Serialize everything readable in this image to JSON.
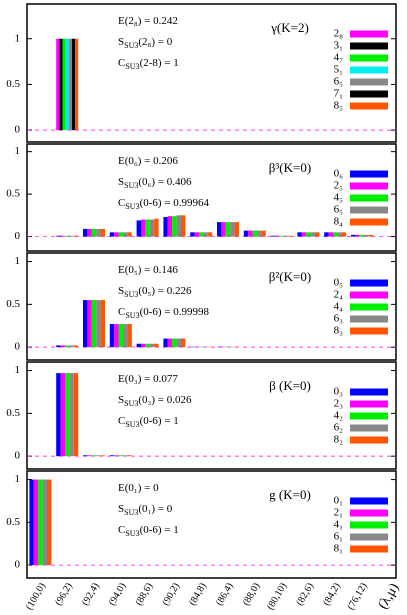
{
  "chart_data": [
    {
      "type": "bar",
      "label": "γ(K=2)",
      "annotations": [
        [
          "E(2₈) = 0.242"
        ],
        [
          "S",
          "SU3",
          "(2₈) = 0"
        ],
        [
          "C",
          "SU3",
          "(2-8) = 1"
        ]
      ],
      "ylim": [
        -0.13,
        1.38
      ],
      "yticks": [
        0,
        0.5,
        1
      ],
      "series": [
        {
          "name": "2₈",
          "color": "#ff00ff",
          "values": [
            0,
            1,
            0,
            0,
            0,
            0,
            0,
            0,
            0,
            0,
            0,
            0,
            0
          ]
        },
        {
          "name": "3₁",
          "color": "#000000",
          "values": [
            0,
            1,
            0,
            0,
            0,
            0,
            0,
            0,
            0,
            0,
            0,
            0,
            0
          ]
        },
        {
          "name": "4₇",
          "color": "#00ee00",
          "values": [
            0,
            1,
            0,
            0,
            0,
            0,
            0,
            0,
            0,
            0,
            0,
            0,
            0
          ]
        },
        {
          "name": "5₁",
          "color": "#00eeee",
          "values": [
            0,
            1,
            0,
            0,
            0,
            0,
            0,
            0,
            0,
            0,
            0,
            0,
            0
          ]
        },
        {
          "name": "6₅",
          "color": "#888888",
          "values": [
            0,
            1,
            0,
            0,
            0,
            0,
            0,
            0,
            0,
            0,
            0,
            0,
            0
          ]
        },
        {
          "name": "7₁",
          "color": "#000000",
          "values": [
            0,
            1,
            0,
            0,
            0,
            0,
            0,
            0,
            0,
            0,
            0,
            0,
            0
          ]
        },
        {
          "name": "8₅",
          "color": "#ff5500",
          "values": [
            0,
            1,
            0,
            0,
            0,
            0,
            0,
            0,
            0,
            0,
            0,
            0,
            0
          ]
        }
      ]
    },
    {
      "type": "bar",
      "label": "β³(K=0)",
      "annotations": [
        [
          "E(0₆) = 0.206"
        ],
        [
          "S",
          "SU3",
          "(0₆) = 0.406"
        ],
        [
          "C",
          "SU3",
          "(0-6) = 0.99964"
        ]
      ],
      "ylim": [
        -0.17,
        1.09
      ],
      "yticks": [
        0,
        0.5,
        1
      ],
      "series": [
        {
          "name": "0₆",
          "color": "#0000ff",
          "values": [
            0,
            0.01,
            0.09,
            0.05,
            0.19,
            0.23,
            0.05,
            0.17,
            0.07,
            0.01,
            0.05,
            0.05,
            0.02
          ]
        },
        {
          "name": "2₅",
          "color": "#ff00ff",
          "values": [
            0,
            0.01,
            0.09,
            0.05,
            0.2,
            0.24,
            0.05,
            0.17,
            0.07,
            0.01,
            0.05,
            0.05,
            0.02
          ]
        },
        {
          "name": "4₅",
          "color": "#00ee00",
          "values": [
            0,
            0.01,
            0.09,
            0.05,
            0.2,
            0.24,
            0.05,
            0.17,
            0.07,
            0.01,
            0.05,
            0.05,
            0.02
          ]
        },
        {
          "name": "6₅",
          "color": "#888888",
          "values": [
            0,
            0.01,
            0.09,
            0.05,
            0.2,
            0.25,
            0.05,
            0.17,
            0.07,
            0.01,
            0.05,
            0.05,
            0.02
          ]
        },
        {
          "name": "8₄",
          "color": "#ff5500",
          "values": [
            0,
            0.01,
            0.09,
            0.05,
            0.21,
            0.25,
            0.05,
            0.17,
            0.07,
            0.01,
            0.05,
            0.05,
            0.02
          ]
        }
      ]
    },
    {
      "type": "bar",
      "label": "β²(K=0)",
      "annotations": [
        [
          "E(0₅) = 0.146"
        ],
        [
          "S",
          "SU3",
          "(0₅) = 0.226"
        ],
        [
          "C",
          "SU3",
          "(0-6) = 0.99998"
        ]
      ],
      "ylim": [
        -0.15,
        1.1
      ],
      "yticks": [
        0,
        0.5,
        1
      ],
      "series": [
        {
          "name": "0₅",
          "color": "#0000ff",
          "values": [
            0,
            0.02,
            0.55,
            0.27,
            0.04,
            0.1,
            0.005,
            0.005,
            0,
            0,
            0,
            0,
            0
          ]
        },
        {
          "name": "2₄",
          "color": "#ff00ff",
          "values": [
            0,
            0.02,
            0.55,
            0.27,
            0.04,
            0.1,
            0.005,
            0.005,
            0,
            0,
            0,
            0,
            0
          ]
        },
        {
          "name": "4₄",
          "color": "#00ee00",
          "values": [
            0,
            0.02,
            0.55,
            0.27,
            0.04,
            0.1,
            0.005,
            0.005,
            0,
            0,
            0,
            0,
            0
          ]
        },
        {
          "name": "6₃",
          "color": "#888888",
          "values": [
            0,
            0.02,
            0.55,
            0.27,
            0.04,
            0.1,
            0.005,
            0.005,
            0,
            0,
            0,
            0,
            0
          ]
        },
        {
          "name": "8₃",
          "color": "#ff5500",
          "values": [
            0,
            0.02,
            0.55,
            0.27,
            0.04,
            0.1,
            0.005,
            0.005,
            0,
            0,
            0,
            0,
            0
          ]
        }
      ]
    },
    {
      "type": "bar",
      "label": "β (K=0)",
      "annotations": [
        [
          "E(0₃) = 0.077"
        ],
        [
          "S",
          "SU3",
          "(0₃) = 0.026"
        ],
        [
          "C",
          "SU3",
          "(0-6) = 1"
        ]
      ],
      "ylim": [
        -0.15,
        1.1
      ],
      "yticks": [
        0,
        0.5,
        1
      ],
      "series": [
        {
          "name": "0₃",
          "color": "#0000ff",
          "values": [
            0,
            0.97,
            0.01,
            0.01,
            0,
            0,
            0,
            0,
            0,
            0,
            0,
            0,
            0
          ]
        },
        {
          "name": "2₃",
          "color": "#ff00ff",
          "values": [
            0,
            0.97,
            0.01,
            0.01,
            0,
            0,
            0,
            0,
            0,
            0,
            0,
            0,
            0
          ]
        },
        {
          "name": "4₂",
          "color": "#00ee00",
          "values": [
            0,
            0.97,
            0.01,
            0.01,
            0,
            0,
            0,
            0,
            0,
            0,
            0,
            0,
            0
          ]
        },
        {
          "name": "6₂",
          "color": "#888888",
          "values": [
            0,
            0.97,
            0.01,
            0.01,
            0,
            0,
            0,
            0,
            0,
            0,
            0,
            0,
            0
          ]
        },
        {
          "name": "8₂",
          "color": "#ff5500",
          "values": [
            0,
            0.97,
            0.01,
            0.01,
            0,
            0,
            0,
            0,
            0,
            0,
            0,
            0,
            0
          ]
        }
      ]
    },
    {
      "type": "bar",
      "label": "g (K=0)",
      "annotations": [
        [
          "E(0₁) = 0"
        ],
        [
          "S",
          "SU3",
          "(0₁) = 0"
        ],
        [
          "C",
          "SU3",
          "(0-6) = 1"
        ]
      ],
      "ylim": [
        -0.15,
        1.1
      ],
      "yticks": [
        0,
        0.5,
        1
      ],
      "categories": [
        "(100,0)",
        "(96,2)",
        "(92,4)",
        "(94,0)",
        "(88,6)",
        "(90,2)",
        "(84,8)",
        "(86,4)",
        "(88,0)",
        "(80,10)",
        "(82,6)",
        "(84,2)",
        "(76,12)"
      ],
      "x_label": "(λ,μ)",
      "series": [
        {
          "name": "0₁",
          "color": "#0000ff",
          "values": [
            1,
            0,
            0,
            0,
            0,
            0,
            0,
            0,
            0,
            0,
            0,
            0,
            0
          ]
        },
        {
          "name": "2₁",
          "color": "#ff00ff",
          "values": [
            1,
            0,
            0,
            0,
            0,
            0,
            0,
            0,
            0,
            0,
            0,
            0,
            0
          ]
        },
        {
          "name": "4₁",
          "color": "#00ee00",
          "values": [
            1,
            0,
            0,
            0,
            0,
            0,
            0,
            0,
            0,
            0,
            0,
            0,
            0
          ]
        },
        {
          "name": "6₁",
          "color": "#888888",
          "values": [
            1,
            0,
            0,
            0,
            0,
            0,
            0,
            0,
            0,
            0,
            0,
            0,
            0
          ]
        },
        {
          "name": "8₁",
          "color": "#ff5500",
          "values": [
            1,
            0,
            0,
            0,
            0,
            0,
            0,
            0,
            0,
            0,
            0,
            0,
            0
          ]
        }
      ]
    }
  ]
}
